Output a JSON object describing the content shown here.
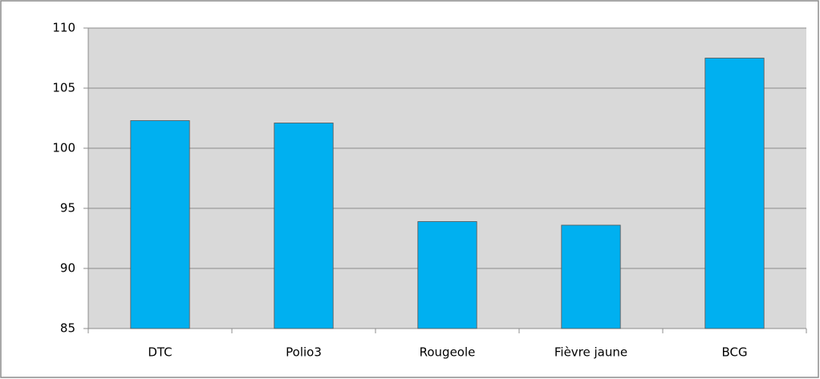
{
  "chart_data": {
    "type": "bar",
    "categories": [
      "DTC",
      "Polio3",
      "Rougeole",
      "Fièvre jaune",
      "BCG"
    ],
    "values": [
      102.3,
      102.1,
      93.9,
      93.6,
      107.5
    ],
    "color": "#00b0f0",
    "ylim": [
      85,
      110
    ],
    "yticks": [
      85,
      90,
      95,
      100,
      105,
      110
    ],
    "grid": true
  }
}
